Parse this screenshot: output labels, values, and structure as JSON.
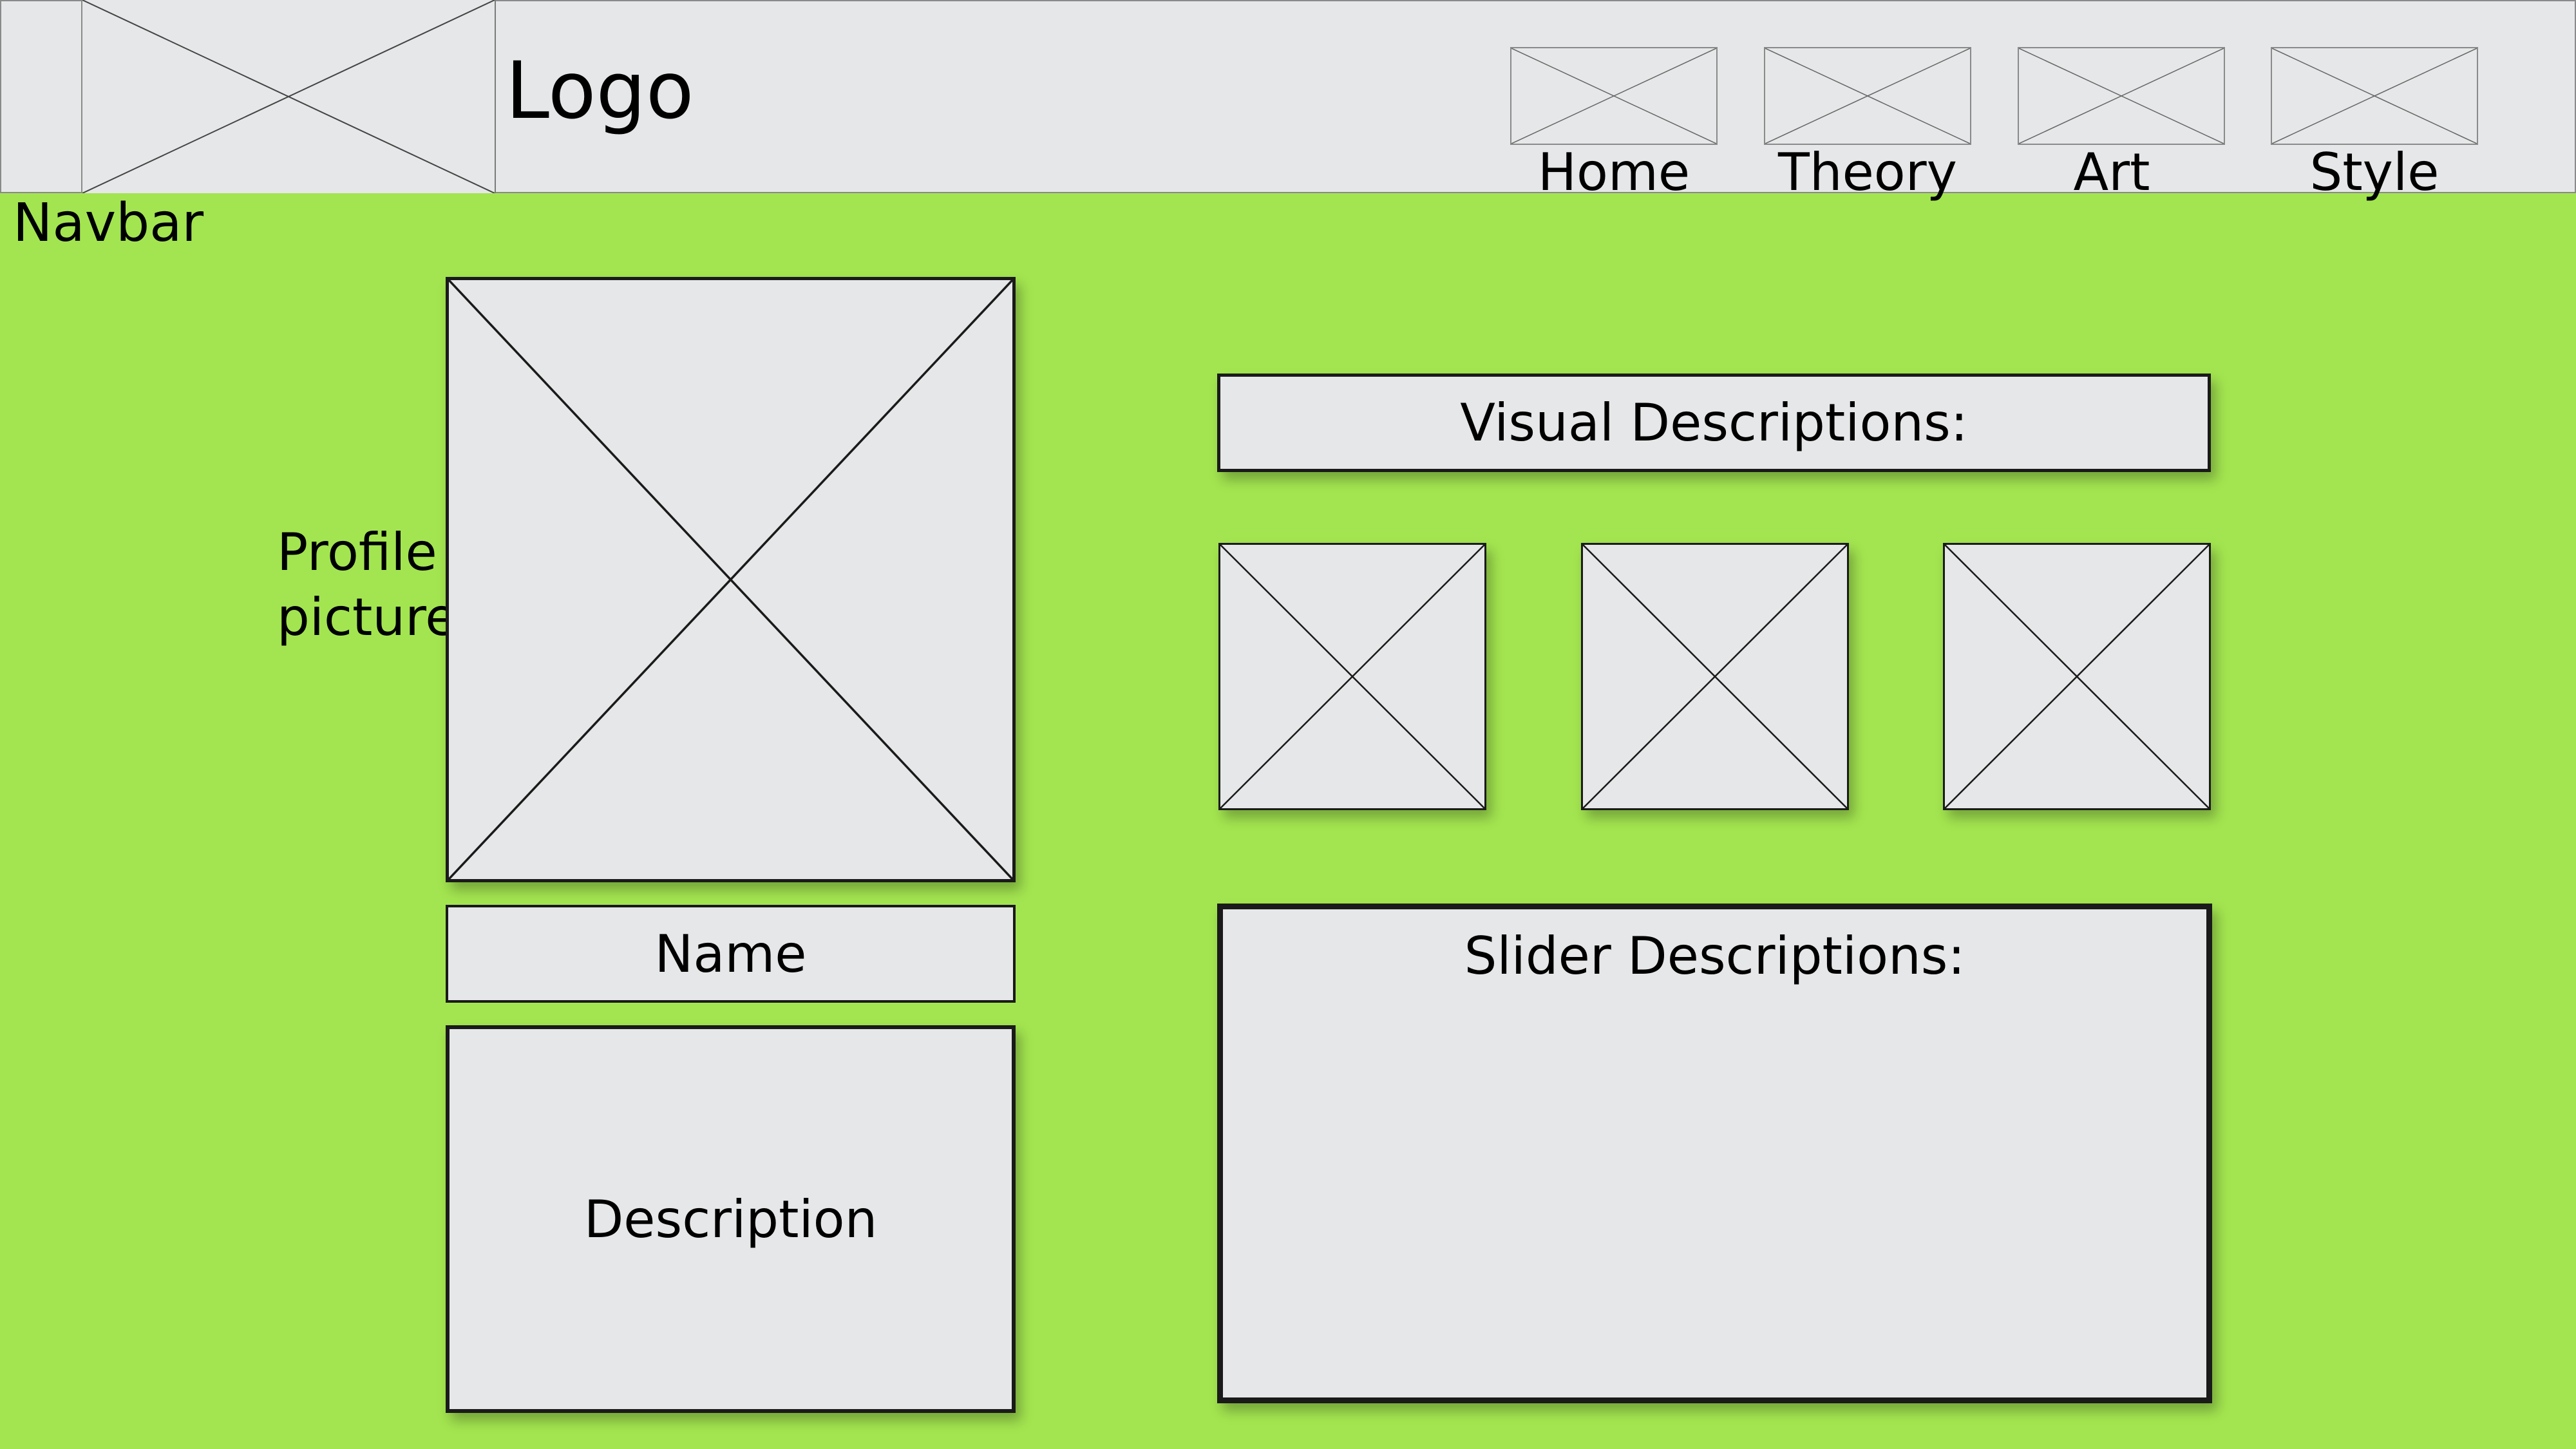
{
  "navbar": {
    "caption": "Navbar",
    "logo_text": "Logo",
    "items": [
      {
        "label": "Home"
      },
      {
        "label": "Theory"
      },
      {
        "label": "Art"
      },
      {
        "label": "Style"
      }
    ]
  },
  "profile": {
    "picture_label": "Profile picture",
    "name": "Name",
    "description": "Description"
  },
  "visual": {
    "title": "Visual Descriptions:",
    "thumbnail_count": 3
  },
  "slider": {
    "title": "Slider Descriptions:"
  },
  "colors": {
    "background": "#a3e550",
    "placeholder_fill": "#e6e7e8",
    "stroke": "#1a1a1a"
  }
}
